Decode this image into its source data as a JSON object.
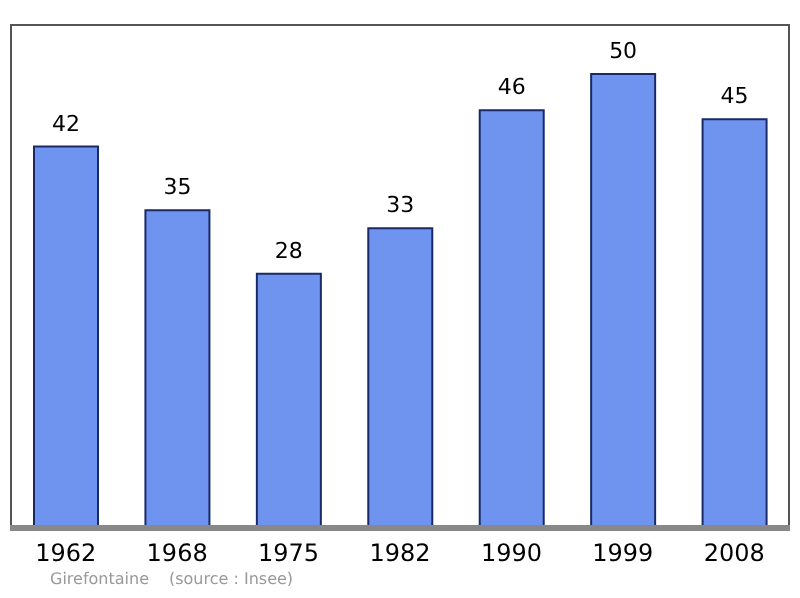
{
  "chart_data": {
    "type": "bar",
    "categories": [
      "1962",
      "1968",
      "1975",
      "1982",
      "1990",
      "1999",
      "2008"
    ],
    "values": [
      42,
      35,
      28,
      33,
      46,
      50,
      45
    ],
    "color": "#6f94f0",
    "data_labels": true,
    "annotations": [
      "Girefontaine",
      "(source : Insee)"
    ]
  }
}
